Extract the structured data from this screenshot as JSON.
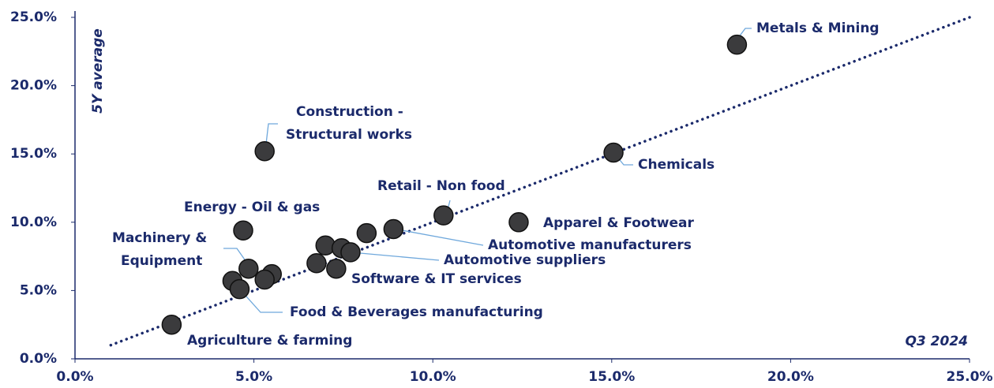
{
  "chart_data": {
    "type": "scatter",
    "y_label": "5Y average",
    "x_annotation": "Q3 2024",
    "color": "#3b3b3d",
    "line_color": "#1b2a6b",
    "x": [
      18.5,
      15.05,
      5.3,
      10.3,
      12.4,
      4.7,
      8.9,
      8.15,
      7.0,
      7.45,
      7.7,
      6.75,
      7.3,
      4.85,
      5.5,
      5.3,
      4.4,
      4.6,
      2.7
    ],
    "y": [
      23.0,
      15.1,
      15.2,
      10.5,
      10.0,
      9.4,
      9.5,
      9.2,
      8.3,
      8.1,
      7.8,
      7.0,
      6.6,
      6.6,
      6.2,
      5.8,
      5.7,
      5.1,
      2.5
    ],
    "labels": [
      "Metals & Mining",
      "Chemicals",
      [
        "Construction -",
        "Structural works"
      ],
      "Retail - Non food",
      "Apparel & Footwear",
      "Energy - Oil & gas",
      "Automotive manufacturers",
      null,
      null,
      null,
      "Automotive suppliers",
      null,
      "Software & IT services",
      [
        "Machinery &",
        "Equipment"
      ],
      null,
      null,
      null,
      "Food & Beverages manufacturing",
      "Agriculture & farming"
    ],
    "trendline": {
      "x": [
        1,
        25
      ],
      "y": [
        1,
        25
      ]
    },
    "xlim": [
      0,
      25
    ],
    "ylim": [
      0,
      25
    ],
    "xticks": [
      {
        "value": 0,
        "label": "0.0%"
      },
      {
        "value": 5,
        "label": "5.0%"
      },
      {
        "value": 10,
        "label": "10.0%"
      },
      {
        "value": 15,
        "label": "15.0%"
      },
      {
        "value": 20,
        "label": "20.0%"
      },
      {
        "value": 25,
        "label": "25.0%"
      }
    ],
    "yticks": [
      {
        "value": 0,
        "label": "0.0%"
      },
      {
        "value": 5,
        "label": "5.0%"
      },
      {
        "value": 10,
        "label": "10.0%"
      },
      {
        "value": 15,
        "label": "15.0%"
      },
      {
        "value": 20,
        "label": "20.0%"
      },
      {
        "value": 25,
        "label": "25.0%"
      }
    ]
  }
}
